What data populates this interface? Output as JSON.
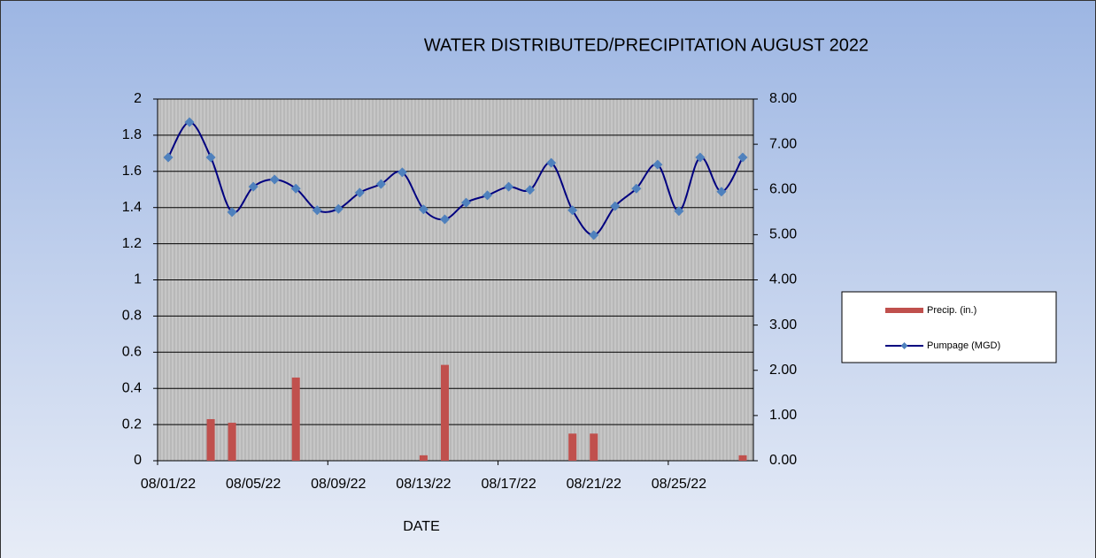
{
  "chart_data": {
    "type": "combo",
    "title": "WATER DISTRIBUTED/PRECIPITATION AUGUST 2022",
    "x_label": "DATE",
    "categories": [
      "08/01/22",
      null,
      null,
      null,
      "08/05/22",
      null,
      null,
      null,
      "08/09/22",
      null,
      null,
      null,
      "08/13/22",
      null,
      null,
      null,
      "08/17/22",
      null,
      null,
      null,
      "08/21/22",
      null,
      null,
      null,
      "08/25/22",
      null,
      null,
      null
    ],
    "series": [
      {
        "name": "Precip. (in.)",
        "type": "bar",
        "axis": "y",
        "color": "#c0504d",
        "values": [
          0,
          0,
          0.23,
          0.21,
          0,
          0,
          0.46,
          0,
          0,
          0,
          0,
          0,
          0.03,
          0.53,
          0,
          0,
          0,
          0,
          0,
          0.15,
          0.15,
          0,
          0,
          0,
          0,
          0,
          0,
          0.03
        ]
      },
      {
        "name": "Pumpage (MGD)",
        "type": "line",
        "axis": "y2",
        "color": "#000080",
        "marker_color": "#4f81bd",
        "values": [
          6.71,
          7.49,
          6.71,
          5.5,
          6.06,
          6.22,
          6.02,
          5.54,
          5.57,
          5.93,
          6.12,
          6.38,
          5.56,
          5.34,
          5.71,
          5.87,
          6.06,
          5.99,
          6.59,
          5.54,
          4.99,
          5.63,
          6.02,
          6.55,
          5.52,
          6.71,
          5.95,
          6.71
        ]
      }
    ],
    "ylim": [
      0,
      2
    ],
    "yticks": [
      0,
      0.2,
      0.4,
      0.6,
      0.8,
      1,
      1.2,
      1.4,
      1.6,
      1.8,
      2
    ],
    "y2lim": [
      0,
      8
    ],
    "y2ticks": [
      {
        "value": 0,
        "label": "0.00"
      },
      {
        "value": 1,
        "label": "1.00"
      },
      {
        "value": 2,
        "label": "2.00"
      },
      {
        "value": 3,
        "label": "3.00"
      },
      {
        "value": 4,
        "label": "4.00"
      },
      {
        "value": 5,
        "label": "5.00"
      },
      {
        "value": 6,
        "label": "6.00"
      },
      {
        "value": 7,
        "label": "7.00"
      },
      {
        "value": 8,
        "label": "8.00"
      }
    ],
    "grid": true,
    "legend": "right"
  }
}
